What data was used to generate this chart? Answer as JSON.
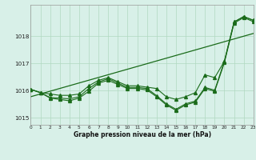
{
  "xlabel": "Graphe pression niveau de la mer (hPa)",
  "hours": [
    0,
    1,
    2,
    3,
    4,
    5,
    6,
    7,
    8,
    9,
    10,
    11,
    12,
    13,
    14,
    15,
    16,
    17,
    18,
    19,
    20,
    21,
    22,
    23
  ],
  "line_main": [
    1016.05,
    1015.93,
    1015.75,
    1015.73,
    1015.7,
    1015.78,
    1016.08,
    1016.32,
    1016.44,
    1016.28,
    1016.12,
    1016.12,
    1016.08,
    1015.82,
    1015.52,
    1015.32,
    1015.52,
    1015.62,
    1016.12,
    1016.02,
    1017.08,
    1018.52,
    1018.72,
    1018.58
  ],
  "line_upper": [
    1016.05,
    1015.93,
    1015.88,
    1015.83,
    1015.83,
    1015.88,
    1016.18,
    1016.38,
    1016.48,
    1016.33,
    1016.18,
    1016.18,
    1016.13,
    1016.08,
    1015.78,
    1015.68,
    1015.78,
    1015.93,
    1016.58,
    1016.48,
    1017.08,
    1018.52,
    1018.72,
    1018.58
  ],
  "line_lower": [
    1016.05,
    1015.93,
    1015.73,
    1015.68,
    1015.63,
    1015.73,
    1015.98,
    1016.28,
    1016.38,
    1016.23,
    1016.08,
    1016.08,
    1016.03,
    1015.78,
    1015.48,
    1015.28,
    1015.48,
    1015.58,
    1016.08,
    1015.98,
    1017.03,
    1018.48,
    1018.68,
    1018.53
  ],
  "line_trend_x": [
    0,
    23
  ],
  "line_trend_y": [
    1015.78,
    1018.1
  ],
  "line_color": "#1a6b1a",
  "bg_color": "#d8f0e8",
  "grid_color": "#b0d8c0",
  "ylim": [
    1014.75,
    1019.15
  ],
  "yticks": [
    1015,
    1016,
    1017,
    1018
  ],
  "xlim": [
    0,
    23
  ],
  "marker": "^",
  "markersize": 2.8
}
